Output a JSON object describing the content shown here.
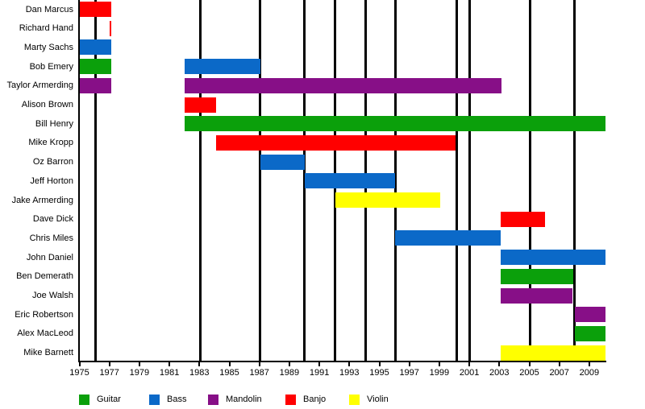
{
  "chart_data": {
    "type": "timeline",
    "description": "Band members tenure timeline colored by instrument",
    "x_axis": {
      "min": 1975,
      "max": 2010.1,
      "tick_years": [
        1975,
        1977,
        1979,
        1981,
        1983,
        1985,
        1987,
        1989,
        1991,
        1993,
        1995,
        1997,
        1999,
        2001,
        2003,
        2005,
        2007,
        2009
      ],
      "grid": false
    },
    "event_lines": {
      "color": "#000000",
      "years": [
        1976.1,
        1983.05,
        1987.05,
        1990.0,
        1992.05,
        1994.08,
        1996.09,
        2000.17,
        2001.0,
        2005.04,
        2008.0
      ]
    },
    "legend": [
      {
        "label": "Guitar",
        "color": "#0ba00b"
      },
      {
        "label": "Bass",
        "color": "#0b69c8"
      },
      {
        "label": "Mandolin",
        "color": "#870f87"
      },
      {
        "label": "Banjo",
        "color": "#ff0000"
      },
      {
        "label": "Violin",
        "color": "#ffff00"
      }
    ],
    "members": [
      {
        "name": "Dan Marcus",
        "segments": [
          {
            "instrument": "Banjo",
            "start": 1975,
            "end": 1977.15
          }
        ]
      },
      {
        "name": "Richard Hand",
        "segments": [
          {
            "instrument": "Banjo",
            "start": 1977.03,
            "end": 1977.15
          }
        ]
      },
      {
        "name": "Marty Sachs",
        "segments": [
          {
            "instrument": "Bass",
            "start": 1975,
            "end": 1977.15
          }
        ]
      },
      {
        "name": "Bob Emery",
        "segments": [
          {
            "instrument": "Guitar",
            "start": 1975,
            "end": 1977.15
          },
          {
            "instrument": "Bass",
            "start": 1982,
            "end": 1987.05
          }
        ]
      },
      {
        "name": "Taylor Armerding",
        "segments": [
          {
            "instrument": "Mandolin",
            "start": 1975,
            "end": 1977.15
          },
          {
            "instrument": "Mandolin",
            "start": 1982,
            "end": 2003.13
          }
        ]
      },
      {
        "name": "Alison Brown",
        "segments": [
          {
            "instrument": "Banjo",
            "start": 1982,
            "end": 1984.1
          }
        ]
      },
      {
        "name": "Bill Henry",
        "segments": [
          {
            "instrument": "Guitar",
            "start": 1982,
            "end": 2010.1
          }
        ]
      },
      {
        "name": "Mike Kropp",
        "segments": [
          {
            "instrument": "Banjo",
            "start": 1984.1,
            "end": 2000.08
          }
        ]
      },
      {
        "name": "Oz Barron",
        "segments": [
          {
            "instrument": "Bass",
            "start": 1987.05,
            "end": 1990.03
          }
        ]
      },
      {
        "name": "Jeff Horton",
        "segments": [
          {
            "instrument": "Bass",
            "start": 1990.03,
            "end": 1996.05
          }
        ]
      },
      {
        "name": "Jake Armerding",
        "segments": [
          {
            "instrument": "Violin",
            "start": 1992.05,
            "end": 1999.06
          }
        ]
      },
      {
        "name": "Dave Dick",
        "segments": [
          {
            "instrument": "Banjo",
            "start": 2003.1,
            "end": 2006.05
          }
        ]
      },
      {
        "name": "Chris Miles",
        "segments": [
          {
            "instrument": "Bass",
            "start": 1996.05,
            "end": 2003.08
          }
        ]
      },
      {
        "name": "John Daniel",
        "segments": [
          {
            "instrument": "Bass",
            "start": 2003.1,
            "end": 2010.1
          }
        ]
      },
      {
        "name": "Ben Demerath",
        "segments": [
          {
            "instrument": "Guitar",
            "start": 2003.1,
            "end": 2007.95
          }
        ]
      },
      {
        "name": "Joe Walsh",
        "segments": [
          {
            "instrument": "Mandolin",
            "start": 2003.1,
            "end": 2007.9
          }
        ]
      },
      {
        "name": "Eric Robertson",
        "segments": [
          {
            "instrument": "Mandolin",
            "start": 2008.05,
            "end": 2010.1
          }
        ]
      },
      {
        "name": "Alex MacLeod",
        "segments": [
          {
            "instrument": "Guitar",
            "start": 2008.05,
            "end": 2010.1
          }
        ]
      },
      {
        "name": "Mike Barnett",
        "segments": [
          {
            "instrument": "Violin",
            "start": 2003.1,
            "end": 2010.1
          }
        ]
      }
    ]
  }
}
